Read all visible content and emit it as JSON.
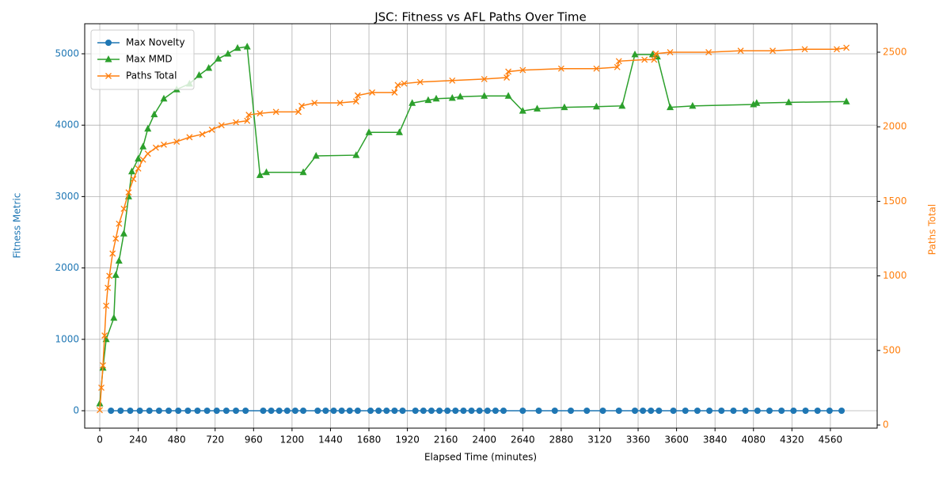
{
  "chart_data": {
    "type": "line",
    "title": "JSC: Fitness vs AFL Paths Over Time",
    "x_label": "Elapsed Time (minutes)",
    "y_label": "Fitness Metric",
    "y2_label": "Paths Total",
    "xlim": [
      -94,
      4852
    ],
    "ylim": [
      -244,
      5421
    ],
    "y2lim": [
      -21,
      2691
    ],
    "xticks": [
      0,
      240,
      480,
      720,
      960,
      1200,
      1440,
      1680,
      1920,
      2160,
      2400,
      2640,
      2880,
      3120,
      3360,
      3600,
      3840,
      4080,
      4320,
      4560
    ],
    "yticks": [
      0,
      1000,
      2000,
      3000,
      4000,
      5000
    ],
    "y2ticks": [
      0,
      500,
      1000,
      1500,
      2000,
      2500
    ],
    "grid": true,
    "legend": "upper left",
    "series": [
      {
        "name": "Max Novelty",
        "color": "#1f77b4",
        "marker": "circle",
        "x": [
          70,
          130,
          190,
          250,
          310,
          370,
          430,
          490,
          550,
          610,
          670,
          730,
          790,
          850,
          910,
          1020,
          1070,
          1120,
          1170,
          1220,
          1270,
          1360,
          1410,
          1460,
          1510,
          1560,
          1610,
          1690,
          1740,
          1790,
          1840,
          1890,
          1970,
          2020,
          2070,
          2120,
          2170,
          2220,
          2270,
          2320,
          2370,
          2420,
          2470,
          2520,
          2640,
          2740,
          2840,
          2940,
          3040,
          3140,
          3240,
          3340,
          3390,
          3440,
          3490,
          3580,
          3655,
          3730,
          3805,
          3880,
          3955,
          4030,
          4105,
          4180,
          4255,
          4330,
          4405,
          4480,
          4555,
          4630
        ],
        "values": [
          0,
          0,
          0,
          0,
          0,
          0,
          0,
          0,
          0,
          0,
          0,
          0,
          0,
          0,
          0,
          0,
          0,
          0,
          0,
          0,
          0,
          0,
          0,
          0,
          0,
          0,
          0,
          0,
          0,
          0,
          0,
          0,
          0,
          0,
          0,
          0,
          0,
          0,
          0,
          0,
          0,
          0,
          0,
          0,
          0,
          0,
          0,
          0,
          0,
          0,
          0,
          0,
          0,
          0,
          0,
          0,
          0,
          0,
          0,
          0,
          0,
          0,
          0,
          0,
          0,
          0,
          0,
          0,
          0,
          0
        ]
      },
      {
        "name": "Max MMD",
        "color": "#2ca02c",
        "marker": "triangle",
        "x": [
          0,
          20,
          40,
          88,
          100,
          120,
          150,
          180,
          200,
          240,
          270,
          300,
          340,
          400,
          480,
          560,
          620,
          680,
          740,
          800,
          860,
          920,
          1000,
          1040,
          1270,
          1350,
          1600,
          1680,
          1870,
          1950,
          2050,
          2100,
          2200,
          2250,
          2400,
          2550,
          2640,
          2730,
          2900,
          3100,
          3260,
          3340,
          3450,
          3480,
          3560,
          3700,
          4080,
          4100,
          4300,
          4660
        ],
        "values": [
          100,
          600,
          1000,
          1300,
          1900,
          2100,
          2480,
          3000,
          3350,
          3530,
          3700,
          3950,
          4150,
          4370,
          4500,
          4580,
          4700,
          4800,
          4930,
          5000,
          5080,
          5100,
          3300,
          3340,
          3340,
          3570,
          3580,
          3900,
          3900,
          4310,
          4350,
          4370,
          4380,
          4400,
          4410,
          4410,
          4200,
          4230,
          4250,
          4260,
          4270,
          4990,
          4990,
          4960,
          4250,
          4270,
          4290,
          4310,
          4320,
          4330
        ]
      },
      {
        "name": "Paths Total",
        "color": "#ff7f0e",
        "marker": "x",
        "axis": "y2",
        "x": [
          0,
          10,
          20,
          30,
          40,
          50,
          60,
          80,
          100,
          120,
          150,
          180,
          210,
          240,
          270,
          300,
          350,
          400,
          480,
          560,
          640,
          700,
          760,
          850,
          920,
          930,
          1000,
          1100,
          1240,
          1260,
          1340,
          1500,
          1600,
          1610,
          1700,
          1840,
          1860,
          1900,
          2000,
          2200,
          2400,
          2540,
          2550,
          2640,
          2880,
          3100,
          3230,
          3240,
          3400,
          3460,
          3470,
          3560,
          3800,
          4000,
          4200,
          4400,
          4600,
          4660
        ],
        "values": [
          100,
          250,
          400,
          600,
          800,
          920,
          1000,
          1150,
          1250,
          1350,
          1450,
          1560,
          1650,
          1720,
          1780,
          1820,
          1860,
          1880,
          1900,
          1930,
          1950,
          1980,
          2010,
          2030,
          2040,
          2080,
          2090,
          2100,
          2100,
          2140,
          2160,
          2160,
          2170,
          2210,
          2230,
          2230,
          2280,
          2290,
          2300,
          2310,
          2320,
          2330,
          2370,
          2380,
          2390,
          2390,
          2400,
          2440,
          2450,
          2450,
          2490,
          2500,
          2500,
          2510,
          2510,
          2520,
          2520,
          2530
        ]
      }
    ]
  }
}
